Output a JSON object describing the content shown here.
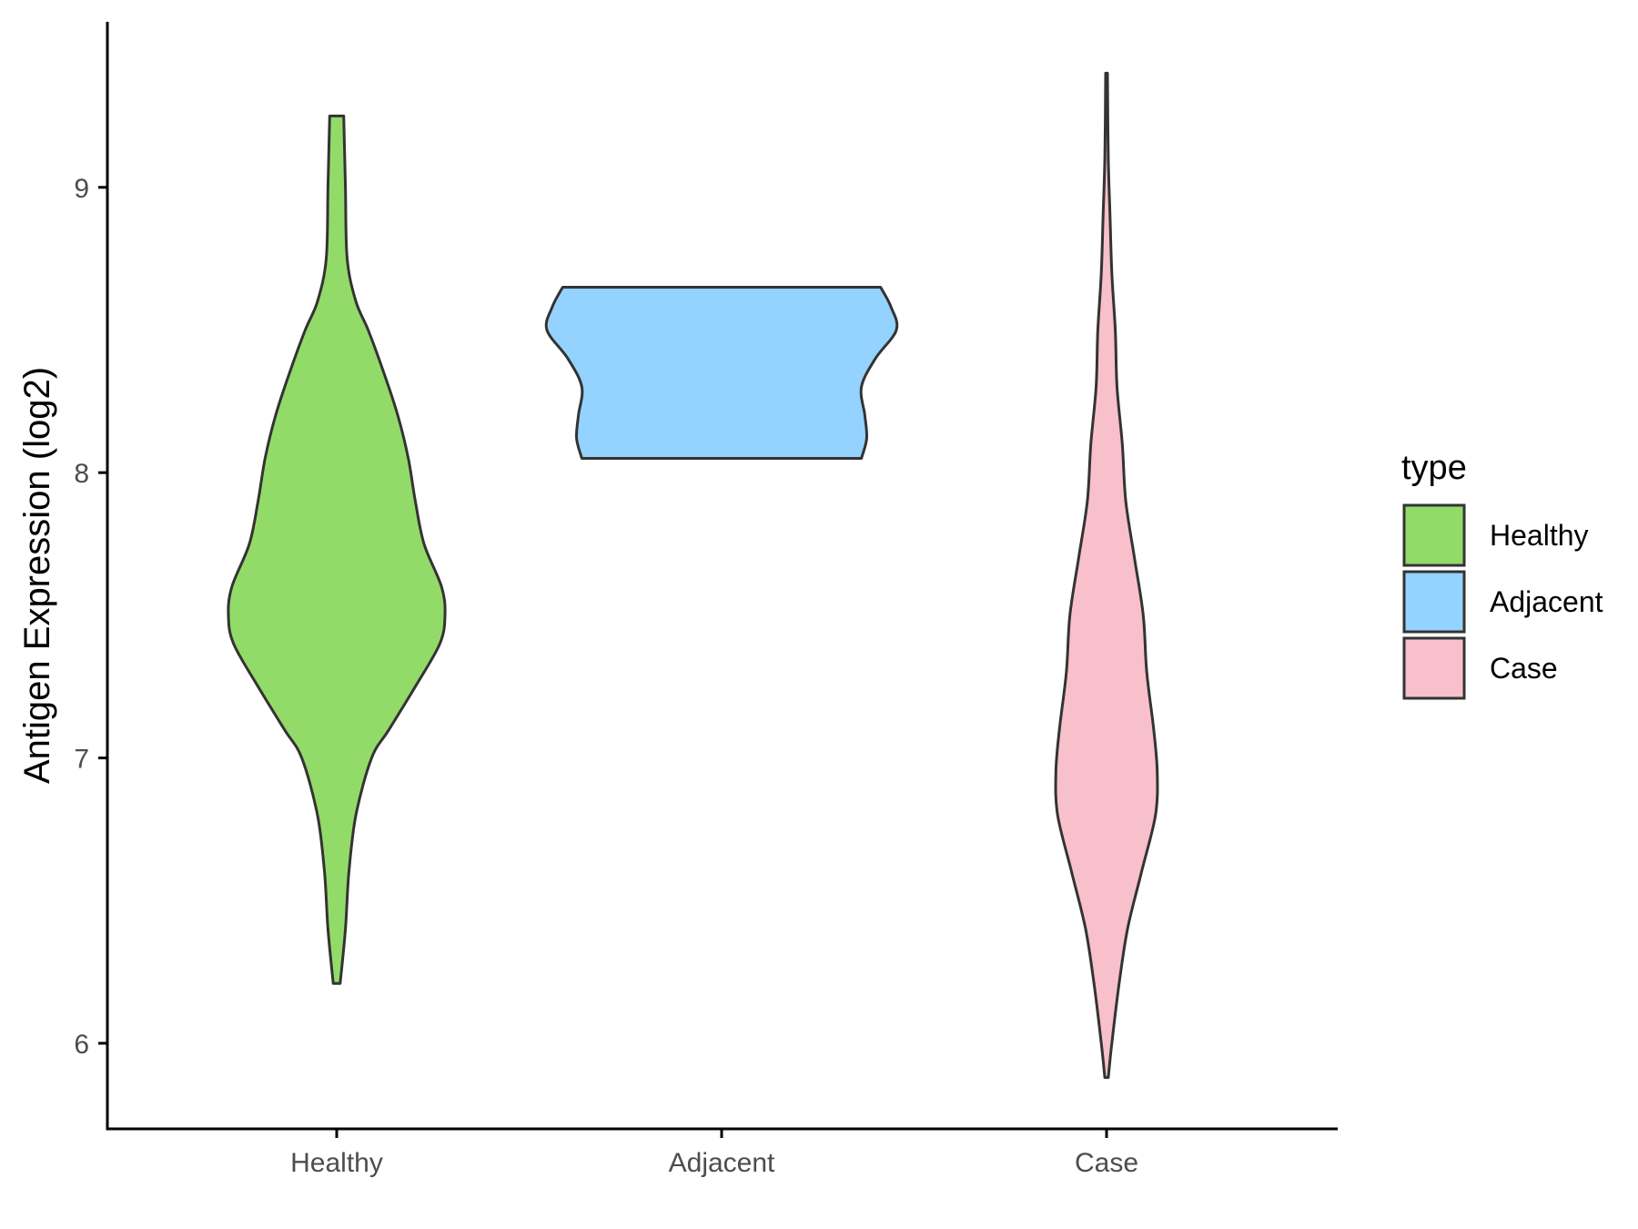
{
  "chart_data": {
    "type": "violin",
    "title": "",
    "xlabel": "",
    "ylabel": "Antigen Expression (log2)",
    "ylim": [
      5.7,
      9.58
    ],
    "yticks": [
      6,
      7,
      8,
      9
    ],
    "categories": [
      "Healthy",
      "Adjacent",
      "Case"
    ],
    "legend": {
      "title": "type",
      "position": "right",
      "entries": [
        "Healthy",
        "Adjacent",
        "Case"
      ]
    },
    "colors": {
      "Healthy": "#93DB69",
      "Adjacent": "#94D3FF",
      "Case": "#F7C0CB"
    },
    "series": [
      {
        "category": "Healthy",
        "min": 6.21,
        "max": 9.25,
        "density_profile": [
          [
            6.21,
            0.02
          ],
          [
            6.4,
            0.05
          ],
          [
            6.6,
            0.07
          ],
          [
            6.8,
            0.11
          ],
          [
            7.0,
            0.2
          ],
          [
            7.1,
            0.3
          ],
          [
            7.25,
            0.45
          ],
          [
            7.4,
            0.59
          ],
          [
            7.5,
            0.62
          ],
          [
            7.6,
            0.6
          ],
          [
            7.75,
            0.5
          ],
          [
            7.9,
            0.45
          ],
          [
            8.05,
            0.41
          ],
          [
            8.2,
            0.35
          ],
          [
            8.35,
            0.27
          ],
          [
            8.5,
            0.18
          ],
          [
            8.6,
            0.11
          ],
          [
            8.75,
            0.06
          ],
          [
            9.0,
            0.05
          ],
          [
            9.25,
            0.04
          ]
        ]
      },
      {
        "category": "Adjacent",
        "min": 8.05,
        "max": 8.65,
        "density_profile": [
          [
            8.05,
            0.8
          ],
          [
            8.12,
            0.83
          ],
          [
            8.2,
            0.82
          ],
          [
            8.3,
            0.8
          ],
          [
            8.4,
            0.88
          ],
          [
            8.5,
            1.0
          ],
          [
            8.58,
            0.97
          ],
          [
            8.65,
            0.91
          ]
        ]
      },
      {
        "category": "Case",
        "min": 5.88,
        "max": 9.4,
        "density_profile": [
          [
            5.88,
            0.01
          ],
          [
            6.0,
            0.03
          ],
          [
            6.2,
            0.07
          ],
          [
            6.4,
            0.12
          ],
          [
            6.6,
            0.2
          ],
          [
            6.8,
            0.28
          ],
          [
            6.95,
            0.29
          ],
          [
            7.1,
            0.27
          ],
          [
            7.3,
            0.23
          ],
          [
            7.5,
            0.21
          ],
          [
            7.7,
            0.16
          ],
          [
            7.9,
            0.11
          ],
          [
            8.1,
            0.09
          ],
          [
            8.3,
            0.06
          ],
          [
            8.5,
            0.05
          ],
          [
            8.7,
            0.03
          ],
          [
            8.9,
            0.02
          ],
          [
            9.1,
            0.01
          ],
          [
            9.4,
            0.005
          ]
        ]
      }
    ]
  }
}
